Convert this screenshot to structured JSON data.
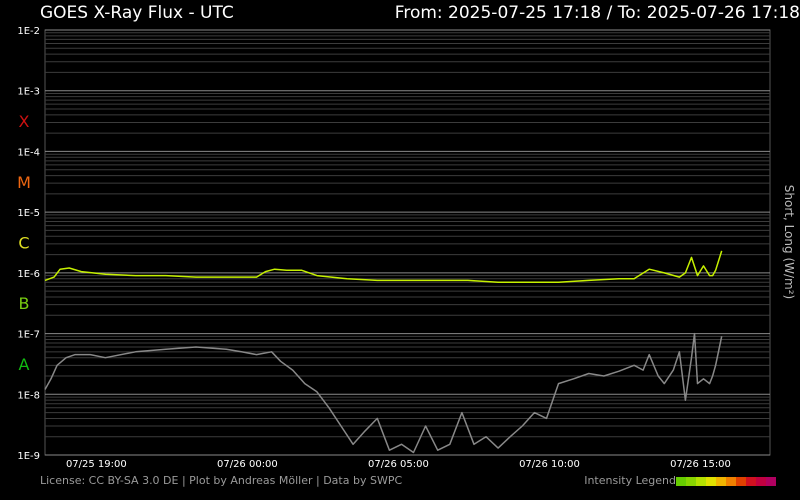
{
  "header": {
    "title": "GOES X-Ray Flux - UTC",
    "range": "From: 2025-07-25 17:18  /  To: 2025-07-26 17:18"
  },
  "footer": {
    "credits": "License: CC BY-SA 3.0 DE | Plot by Andreas Möller | Data by SWPC",
    "legend_label": "Intensity Legend",
    "legend_colors": [
      "#66cc00",
      "#88d400",
      "#b4e000",
      "#e0e000",
      "#f0b400",
      "#f08000",
      "#e04000",
      "#d01020",
      "#c00040",
      "#b00060"
    ]
  },
  "chart_data": {
    "type": "line",
    "ylabel": "Short, Long (W/m²)",
    "yscale": "log",
    "ylim": [
      1e-09,
      0.01
    ],
    "y_ticks": [
      "1E-2",
      "1E-3",
      "1E-4",
      "1E-5",
      "1E-6",
      "1E-7",
      "1E-8",
      "1E-9"
    ],
    "x_unit": "hours after 2025-07-25 17:18 UTC",
    "xlim": [
      0,
      24
    ],
    "x_ticks": [
      {
        "label": "07/25 19:00",
        "x": 1.7
      },
      {
        "label": "07/26 00:00",
        "x": 6.7
      },
      {
        "label": "07/26 05:00",
        "x": 11.7
      },
      {
        "label": "07/26 10:00",
        "x": 16.7
      },
      {
        "label": "07/26 15:00",
        "x": 21.7
      }
    ],
    "flare_classes": [
      {
        "label": "X",
        "color": "#cc1111"
      },
      {
        "label": "M",
        "color": "#ee6611"
      },
      {
        "label": "C",
        "color": "#dddd22"
      },
      {
        "label": "B",
        "color": "#77cc11"
      },
      {
        "label": "A",
        "color": "#11bb11"
      }
    ],
    "series": [
      {
        "name": "Long",
        "color": "#c6f000",
        "x": [
          0,
          0.3,
          0.5,
          0.8,
          1.2,
          2,
          3,
          4,
          5,
          6,
          7,
          7.3,
          7.6,
          8,
          8.5,
          9,
          10,
          11,
          12,
          13,
          14,
          15,
          16,
          17,
          18,
          19,
          19.5,
          20,
          20.5,
          21,
          21.2,
          21.4,
          21.6,
          21.8,
          22,
          22.1,
          22.2,
          22.4
        ],
        "y": [
          7.5e-07,
          8.5e-07,
          1.15e-06,
          1.2e-06,
          1.05e-06,
          9.5e-07,
          9e-07,
          9e-07,
          8.5e-07,
          8.5e-07,
          8.5e-07,
          1.05e-06,
          1.15e-06,
          1.1e-06,
          1.1e-06,
          9e-07,
          8e-07,
          7.5e-07,
          7.5e-07,
          7.5e-07,
          7.5e-07,
          7e-07,
          7e-07,
          7e-07,
          7.5e-07,
          8e-07,
          8e-07,
          1.15e-06,
          1e-06,
          8.5e-07,
          1e-06,
          1.8e-06,
          9e-07,
          1.3e-06,
          9e-07,
          9e-07,
          1.1e-06,
          2.3e-06
        ]
      },
      {
        "name": "Short",
        "color": "#888888",
        "x": [
          0,
          0.2,
          0.4,
          0.7,
          1,
          1.5,
          2,
          3,
          4,
          5,
          6,
          6.5,
          7,
          7.5,
          7.8,
          8.2,
          8.6,
          9,
          9.4,
          9.8,
          10.2,
          10.6,
          11,
          11.4,
          11.8,
          12.2,
          12.6,
          13,
          13.4,
          13.8,
          14.2,
          14.6,
          15,
          15.4,
          15.8,
          16.2,
          16.6,
          17,
          17.5,
          18,
          18.5,
          19,
          19.5,
          19.8,
          20,
          20.3,
          20.5,
          20.8,
          21,
          21.2,
          21.4,
          21.5,
          21.6,
          21.8,
          22,
          22.1,
          22.2,
          22.4
        ],
        "y": [
          1.2e-08,
          1.8e-08,
          3e-08,
          4e-08,
          4.5e-08,
          4.5e-08,
          4e-08,
          5e-08,
          5.5e-08,
          6e-08,
          5.5e-08,
          5e-08,
          4.5e-08,
          5e-08,
          3.5e-08,
          2.5e-08,
          1.5e-08,
          1.1e-08,
          6e-09,
          3e-09,
          1.5e-09,
          2.5e-09,
          4e-09,
          1.2e-09,
          1.5e-09,
          1.1e-09,
          3e-09,
          1.2e-09,
          1.5e-09,
          5e-09,
          1.5e-09,
          2e-09,
          1.3e-09,
          2e-09,
          3e-09,
          5e-09,
          4e-09,
          1.5e-08,
          1.8e-08,
          2.2e-08,
          2e-08,
          2.4e-08,
          3e-08,
          2.5e-08,
          4.5e-08,
          2e-08,
          1.5e-08,
          2.5e-08,
          5e-08,
          8e-09,
          4e-08,
          1e-07,
          1.5e-08,
          1.8e-08,
          1.5e-08,
          2e-08,
          3e-08,
          9e-08
        ]
      }
    ]
  }
}
